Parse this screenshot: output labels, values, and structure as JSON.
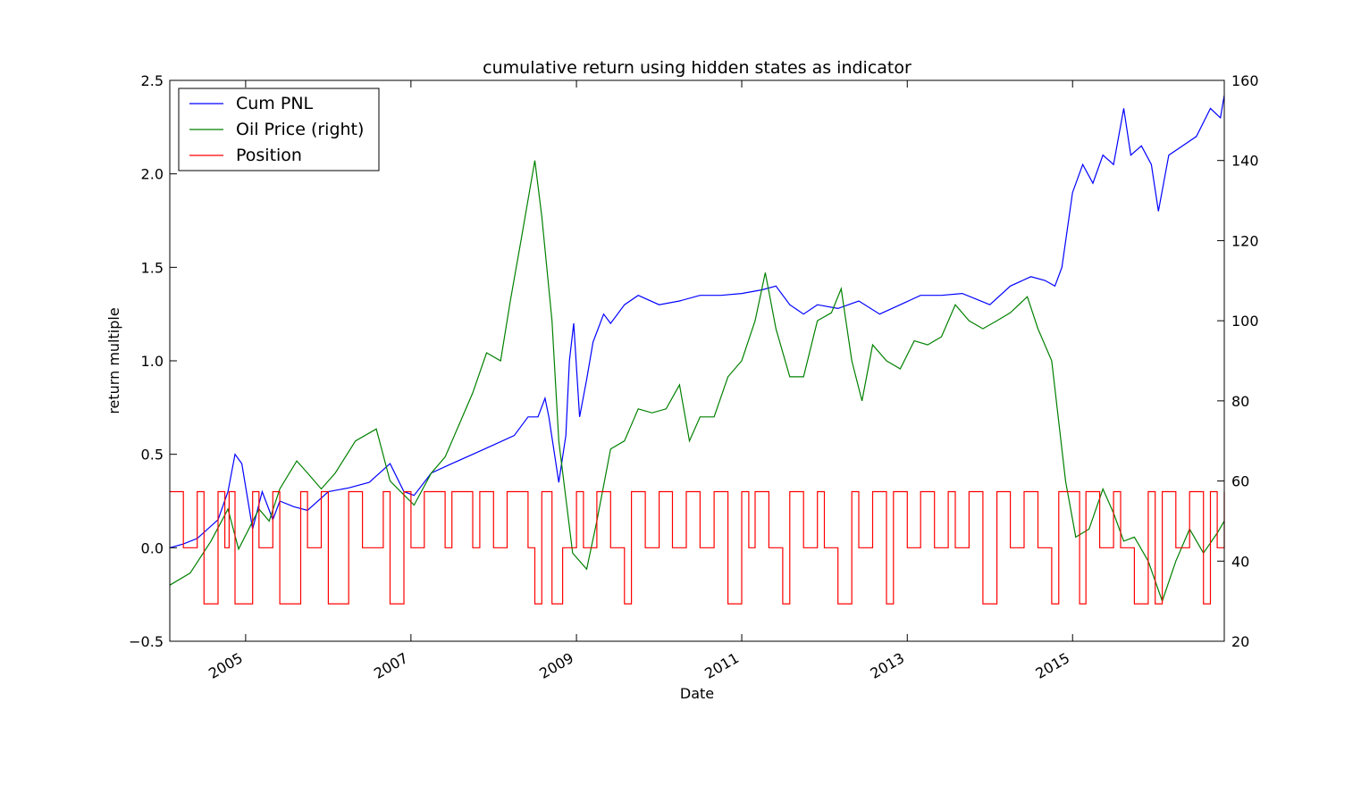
{
  "chart_data": {
    "type": "line",
    "title": "cumulative return using hidden states as indicator",
    "xlabel": "Date",
    "ylabel": "return multiple",
    "ylabel_right": "",
    "xlim": [
      "2004-02-01",
      "2016-11-01"
    ],
    "ylim": [
      -0.5,
      2.5
    ],
    "ylim_right": [
      20,
      160
    ],
    "x_ticks": [
      "2005",
      "2007",
      "2009",
      "2011",
      "2013",
      "2015"
    ],
    "x_tick_dates": [
      "2005-01-01",
      "2007-01-01",
      "2009-01-01",
      "2011-01-01",
      "2013-01-01",
      "2015-01-01"
    ],
    "y_ticks": [
      "−0.5",
      "0.0",
      "0.5",
      "1.0",
      "1.5",
      "2.0",
      "2.5"
    ],
    "y_tick_values": [
      -0.5,
      0.0,
      0.5,
      1.0,
      1.5,
      2.0,
      2.5
    ],
    "y_ticks_right": [
      "20",
      "40",
      "60",
      "80",
      "100",
      "120",
      "140",
      "160"
    ],
    "y_tick_values_right": [
      20,
      40,
      60,
      80,
      100,
      120,
      140,
      160
    ],
    "grid": false,
    "legend_position": "top-left",
    "legend": [
      "Cum PNL",
      "Oil Price (right)",
      "Position"
    ],
    "series": [
      {
        "name": "Cum PNL",
        "color": "#0000ff",
        "axis": "left",
        "x": [
          "2004-02-01",
          "2004-04-01",
          "2004-06-01",
          "2004-09-01",
          "2004-10-15",
          "2004-11-15",
          "2004-12-15",
          "2005-02-01",
          "2005-03-15",
          "2005-05-01",
          "2005-06-01",
          "2005-08-01",
          "2005-10-01",
          "2006-01-01",
          "2006-04-01",
          "2006-07-01",
          "2006-10-01",
          "2006-12-01",
          "2007-01-15",
          "2007-04-01",
          "2007-07-01",
          "2007-10-01",
          "2008-01-01",
          "2008-04-01",
          "2008-06-01",
          "2008-07-15",
          "2008-08-15",
          "2008-09-01",
          "2008-10-15",
          "2008-11-15",
          "2008-12-01",
          "2008-12-20",
          "2009-01-15",
          "2009-02-15",
          "2009-03-15",
          "2009-05-01",
          "2009-06-01",
          "2009-08-01",
          "2009-10-01",
          "2010-01-01",
          "2010-04-01",
          "2010-07-01",
          "2010-10-01",
          "2011-01-01",
          "2011-04-01",
          "2011-06-01",
          "2011-08-01",
          "2011-10-01",
          "2011-12-01",
          "2012-03-01",
          "2012-06-01",
          "2012-09-01",
          "2012-12-01",
          "2013-03-01",
          "2013-06-01",
          "2013-09-01",
          "2014-01-01",
          "2014-04-01",
          "2014-07-01",
          "2014-09-01",
          "2014-10-15",
          "2014-11-15",
          "2015-01-01",
          "2015-02-15",
          "2015-04-01",
          "2015-05-15",
          "2015-07-01",
          "2015-08-15",
          "2015-09-15",
          "2015-11-01",
          "2015-12-15",
          "2016-01-15",
          "2016-03-01",
          "2016-05-01",
          "2016-07-01",
          "2016-09-01",
          "2016-10-15",
          "2016-11-01"
        ],
        "y": [
          0.0,
          0.02,
          0.05,
          0.15,
          0.3,
          0.5,
          0.45,
          0.1,
          0.3,
          0.15,
          0.25,
          0.22,
          0.2,
          0.3,
          0.32,
          0.35,
          0.45,
          0.3,
          0.28,
          0.4,
          0.45,
          0.5,
          0.55,
          0.6,
          0.7,
          0.7,
          0.8,
          0.7,
          0.35,
          0.6,
          1.0,
          1.2,
          0.7,
          0.9,
          1.1,
          1.25,
          1.2,
          1.3,
          1.35,
          1.3,
          1.32,
          1.35,
          1.35,
          1.36,
          1.38,
          1.4,
          1.3,
          1.25,
          1.3,
          1.28,
          1.32,
          1.25,
          1.3,
          1.35,
          1.35,
          1.36,
          1.3,
          1.4,
          1.45,
          1.43,
          1.4,
          1.5,
          1.9,
          2.05,
          1.95,
          2.1,
          2.05,
          2.35,
          2.1,
          2.15,
          2.05,
          1.8,
          2.1,
          2.15,
          2.2,
          2.35,
          2.3,
          2.42
        ]
      },
      {
        "name": "Oil Price (right)",
        "color": "#008000",
        "axis": "right",
        "x": [
          "2004-02-01",
          "2004-05-01",
          "2004-08-01",
          "2004-10-15",
          "2004-12-01",
          "2005-03-01",
          "2005-04-15",
          "2005-06-01",
          "2005-08-15",
          "2005-10-01",
          "2005-12-01",
          "2006-02-01",
          "2006-05-01",
          "2006-08-01",
          "2006-10-01",
          "2007-01-15",
          "2007-04-01",
          "2007-06-01",
          "2007-08-01",
          "2007-10-01",
          "2007-12-01",
          "2008-02-01",
          "2008-03-15",
          "2008-05-01",
          "2008-07-01",
          "2008-08-01",
          "2008-09-15",
          "2008-10-15",
          "2008-12-15",
          "2009-02-15",
          "2009-04-01",
          "2009-06-01",
          "2009-08-01",
          "2009-10-01",
          "2009-12-01",
          "2010-02-01",
          "2010-04-01",
          "2010-05-15",
          "2010-07-01",
          "2010-09-01",
          "2010-11-01",
          "2011-01-01",
          "2011-03-01",
          "2011-04-15",
          "2011-06-01",
          "2011-08-01",
          "2011-10-01",
          "2011-12-01",
          "2012-02-01",
          "2012-03-15",
          "2012-05-01",
          "2012-06-15",
          "2012-08-01",
          "2012-10-01",
          "2012-12-01",
          "2013-02-01",
          "2013-04-01",
          "2013-06-01",
          "2013-08-01",
          "2013-10-01",
          "2013-12-01",
          "2014-02-01",
          "2014-04-01",
          "2014-06-15",
          "2014-08-01",
          "2014-10-01",
          "2014-12-01",
          "2015-01-15",
          "2015-03-15",
          "2015-05-15",
          "2015-07-01",
          "2015-08-15",
          "2015-10-01",
          "2015-12-01",
          "2016-02-01",
          "2016-04-01",
          "2016-06-01",
          "2016-08-01",
          "2016-10-01",
          "2016-11-01"
        ],
        "y": [
          34,
          37,
          45,
          53,
          43,
          53,
          50,
          58,
          65,
          62,
          58,
          62,
          70,
          73,
          60,
          54,
          62,
          66,
          74,
          82,
          92,
          90,
          105,
          120,
          140,
          126,
          100,
          70,
          42,
          38,
          50,
          68,
          70,
          78,
          77,
          78,
          84,
          70,
          76,
          76,
          86,
          90,
          100,
          112,
          98,
          86,
          86,
          100,
          102,
          108,
          90,
          80,
          94,
          90,
          88,
          95,
          94,
          96,
          104,
          100,
          98,
          100,
          102,
          106,
          98,
          90,
          60,
          46,
          48,
          58,
          52,
          45,
          46,
          40,
          30,
          40,
          48,
          42,
          47,
          50
        ]
      },
      {
        "name": "Position",
        "color": "#ff0000",
        "axis": "left",
        "step": true,
        "x": [
          "2004-02-01",
          "2004-04-01",
          "2004-06-01",
          "2004-07-01",
          "2004-09-01",
          "2004-10-01",
          "2004-10-20",
          "2004-11-15",
          "2005-02-01",
          "2005-03-01",
          "2005-05-01",
          "2005-06-01",
          "2005-09-01",
          "2005-10-01",
          "2005-12-01",
          "2006-01-01",
          "2006-04-01",
          "2006-06-01",
          "2006-09-01",
          "2006-10-01",
          "2006-12-01",
          "2007-01-01",
          "2007-03-01",
          "2007-06-01",
          "2007-07-01",
          "2007-10-01",
          "2007-11-01",
          "2008-01-01",
          "2008-03-01",
          "2008-06-01",
          "2008-07-01",
          "2008-08-01",
          "2008-09-15",
          "2008-11-01",
          "2009-01-01",
          "2009-02-01",
          "2009-04-01",
          "2009-06-01",
          "2009-08-01",
          "2009-09-01",
          "2009-11-01",
          "2010-01-01",
          "2010-03-01",
          "2010-05-01",
          "2010-07-01",
          "2010-09-01",
          "2010-11-01",
          "2011-01-01",
          "2011-02-01",
          "2011-03-01",
          "2011-05-01",
          "2011-07-01",
          "2011-08-01",
          "2011-10-01",
          "2011-12-01",
          "2012-01-01",
          "2012-03-01",
          "2012-05-01",
          "2012-06-01",
          "2012-08-01",
          "2012-10-01",
          "2012-11-01",
          "2013-01-01",
          "2013-03-01",
          "2013-05-01",
          "2013-07-01",
          "2013-08-01",
          "2013-10-01",
          "2013-12-01",
          "2014-02-01",
          "2014-04-01",
          "2014-06-01",
          "2014-08-01",
          "2014-10-01",
          "2014-11-01",
          "2015-02-01",
          "2015-03-01",
          "2015-05-01",
          "2015-07-01",
          "2015-08-01",
          "2015-10-01",
          "2015-12-01",
          "2016-01-01",
          "2016-02-01",
          "2016-04-01",
          "2016-06-01",
          "2016-08-01",
          "2016-09-01",
          "2016-10-01",
          "2016-11-01"
        ],
        "y": [
          0.3,
          0,
          0.3,
          -0.3,
          0.3,
          0,
          0.3,
          -0.3,
          0.3,
          0,
          0.3,
          -0.3,
          0.3,
          0,
          0.3,
          -0.3,
          0.3,
          0,
          0.3,
          -0.3,
          0.3,
          0,
          0.3,
          0,
          0.3,
          0,
          0.3,
          0,
          0.3,
          0,
          -0.3,
          0.3,
          -0.3,
          0,
          0.3,
          0,
          0.3,
          0,
          -0.3,
          0.3,
          0,
          0.3,
          0,
          0.3,
          0,
          0.3,
          -0.3,
          0.3,
          0,
          0.3,
          0,
          -0.3,
          0.3,
          0,
          0.3,
          0,
          -0.3,
          0.3,
          0,
          0.3,
          -0.3,
          0.3,
          0,
          0.3,
          0,
          0.3,
          0,
          0.3,
          -0.3,
          0.3,
          0,
          0.3,
          0,
          -0.3,
          0.3,
          -0.3,
          0.3,
          0,
          0.3,
          0,
          -0.3,
          0.3,
          -0.3,
          0.3,
          0,
          0.3,
          -0.3,
          0.3,
          0,
          0.3
        ]
      }
    ]
  }
}
